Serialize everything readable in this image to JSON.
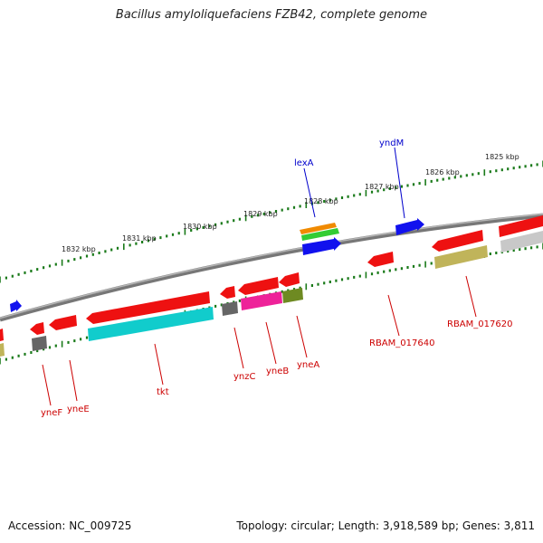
{
  "title": "Bacillus amyloliquefaciens FZB42, complete genome",
  "footer": {
    "accession": "Accession: NC_009725",
    "topology": "Topology: circular; Length: 3,918,589 bp; Genes: 3,811"
  },
  "scale_labels": [
    "1825 kbp",
    "1826 kbp",
    "1827 kbp",
    "1828 kbp",
    "1829 kbp",
    "1830 kbp",
    "1831 kbp",
    "1832 kbp"
  ],
  "gene_labels": [
    {
      "text": "lexA",
      "color": "#0000cc"
    },
    {
      "text": "yndM",
      "color": "#0000cc"
    },
    {
      "text": "RBAM_017620",
      "color": "#cc0000"
    },
    {
      "text": "RBAM_017640",
      "color": "#cc0000"
    },
    {
      "text": "yneA",
      "color": "#cc0000"
    },
    {
      "text": "yneB",
      "color": "#cc0000"
    },
    {
      "text": "ynzC",
      "color": "#cc0000"
    },
    {
      "text": "tkt",
      "color": "#cc0000"
    },
    {
      "text": "yneE",
      "color": "#cc0000"
    },
    {
      "text": "yneF",
      "color": "#cc0000"
    }
  ],
  "colors": {
    "red": "#ee1111",
    "blue": "#1111ee",
    "cyan": "#11cccc",
    "magenta": "#ee2299",
    "olive": "#6e8a22",
    "khaki": "#c0b45a",
    "gray": "#666666",
    "lightgray": "#c8c8c8",
    "orange": "#f08a00",
    "green": "#33cc33",
    "tick": "#1a7a1a",
    "backbone": "#8a8a8a"
  }
}
